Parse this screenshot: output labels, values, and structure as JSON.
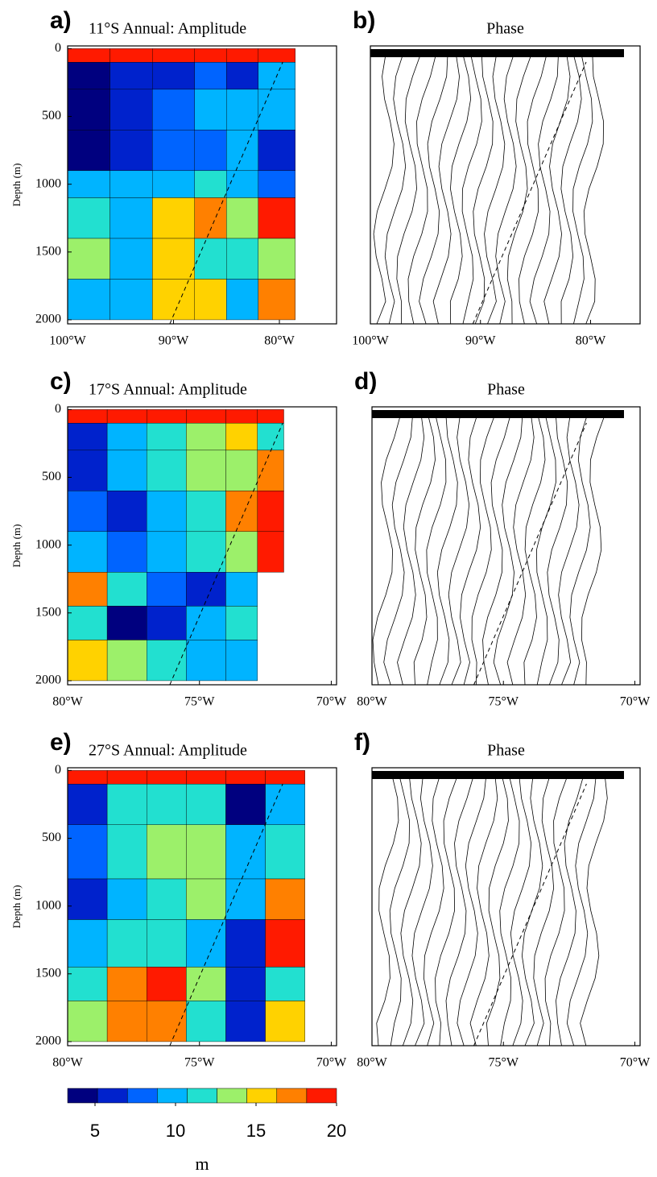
{
  "chart_data": [
    {
      "type": "contourf",
      "label": "a)",
      "title": "11°S Annual: Amplitude",
      "ylabel": "Depth (m)",
      "xlim": [
        -100,
        -74.6
      ],
      "ylim": [
        -20,
        2030
      ],
      "xticks": [
        {
          "value": -100,
          "label": "100°W"
        },
        {
          "value": -90,
          "label": "90°W"
        },
        {
          "value": -80,
          "label": "80°W"
        }
      ],
      "yticks": [
        0,
        500,
        1000,
        1500,
        2000
      ],
      "x_edges": [
        -100,
        -96,
        -92,
        -88,
        -85,
        -82,
        -78.5
      ],
      "depth_edges": [
        0,
        100,
        300,
        600,
        900,
        1100,
        1400,
        1700,
        2000
      ],
      "values": [
        [
          20,
          20,
          20,
          20,
          20,
          20
        ],
        [
          5,
          6,
          7,
          8,
          7,
          9
        ],
        [
          4,
          7,
          8,
          9,
          9,
          9
        ],
        [
          4,
          6,
          8,
          8,
          9,
          6
        ],
        [
          9,
          9,
          10,
          12,
          10,
          8
        ],
        [
          12,
          9,
          15,
          17,
          14,
          20
        ],
        [
          13,
          10,
          15,
          12,
          12,
          14
        ],
        [
          10,
          9,
          16,
          15,
          10,
          18
        ]
      ]
    },
    {
      "type": "contour",
      "label": "b)",
      "title": "Phase",
      "xlim": [
        -100,
        -75.5
      ],
      "xticks": [
        {
          "value": -100,
          "label": "100°W"
        },
        {
          "value": -90,
          "label": "90°W"
        },
        {
          "value": -80,
          "label": "80°W"
        }
      ]
    },
    {
      "type": "contourf",
      "label": "c)",
      "title": "17°S Annual: Amplitude",
      "ylabel": "Depth (m)",
      "xlim": [
        -80,
        -69.8
      ],
      "ylim": [
        -20,
        2030
      ],
      "xticks": [
        {
          "value": -80,
          "label": "80°W"
        },
        {
          "value": -75,
          "label": "75°W"
        },
        {
          "value": -70,
          "label": "70°W"
        }
      ],
      "yticks": [
        0,
        500,
        1000,
        1500,
        2000
      ],
      "x_edges": [
        -80,
        -78.5,
        -77,
        -75.5,
        -74,
        -72.8,
        -71.8
      ],
      "depth_edges": [
        0,
        100,
        300,
        600,
        900,
        1200,
        1450,
        1700,
        2000
      ],
      "values": [
        [
          20,
          20,
          20,
          20,
          20,
          20
        ],
        [
          7,
          9,
          12,
          14,
          16,
          12
        ],
        [
          6,
          9,
          12,
          13,
          14,
          17
        ],
        [
          8,
          6,
          10,
          12,
          17,
          19
        ],
        [
          10,
          8,
          9,
          12,
          14,
          19
        ],
        [
          18,
          12,
          8,
          7,
          9,
          null
        ],
        [
          12,
          5,
          7,
          10,
          11,
          null
        ],
        [
          15,
          13,
          11,
          10,
          9,
          null
        ]
      ]
    },
    {
      "type": "contour",
      "label": "d)",
      "title": "Phase",
      "xlim": [
        -80,
        -69.8
      ],
      "xticks": [
        {
          "value": -80,
          "label": "80°W"
        },
        {
          "value": -75,
          "label": "75°W"
        },
        {
          "value": -70,
          "label": "70°W"
        }
      ]
    },
    {
      "type": "contourf",
      "label": "e)",
      "title": "27°S Annual: Amplitude",
      "ylabel": "Depth (m)",
      "xlim": [
        -80,
        -69.8
      ],
      "ylim": [
        -20,
        2030
      ],
      "xticks": [
        {
          "value": -80,
          "label": "80°W"
        },
        {
          "value": -75,
          "label": "75°W"
        },
        {
          "value": -70,
          "label": "70°W"
        }
      ],
      "yticks": [
        0,
        500,
        1000,
        1500,
        2000
      ],
      "x_edges": [
        -80,
        -78.5,
        -77,
        -75.5,
        -74,
        -72.5,
        -71
      ],
      "depth_edges": [
        0,
        100,
        400,
        800,
        1100,
        1450,
        1700,
        2000
      ],
      "values": [
        [
          20,
          20,
          20,
          20,
          20,
          20
        ],
        [
          6,
          11,
          12,
          11,
          5,
          9
        ],
        [
          8,
          12,
          14,
          13,
          9,
          11
        ],
        [
          6,
          9,
          12,
          13,
          10,
          18
        ],
        [
          9,
          11,
          12,
          9,
          7,
          19
        ],
        [
          11,
          18,
          19,
          14,
          6,
          12
        ],
        [
          13,
          18,
          17,
          12,
          6,
          15
        ]
      ]
    },
    {
      "type": "contour",
      "label": "f)",
      "title": "Phase",
      "xlim": [
        -80,
        -69.8
      ],
      "xticks": [
        {
          "value": -80,
          "label": "80°W"
        },
        {
          "value": -75,
          "label": "75°W"
        },
        {
          "value": -70,
          "label": "70°W"
        }
      ]
    },
    {
      "type": "colorbar",
      "label": "m",
      "clim": [
        3.3,
        20
      ],
      "ticks": [
        5,
        10,
        15,
        20
      ],
      "colors": [
        "#00007f",
        "#0022cc",
        "#0064ff",
        "#00b4ff",
        "#22e0d0",
        "#9cf06a",
        "#ffd200",
        "#ff8000",
        "#ff1a00"
      ]
    }
  ]
}
